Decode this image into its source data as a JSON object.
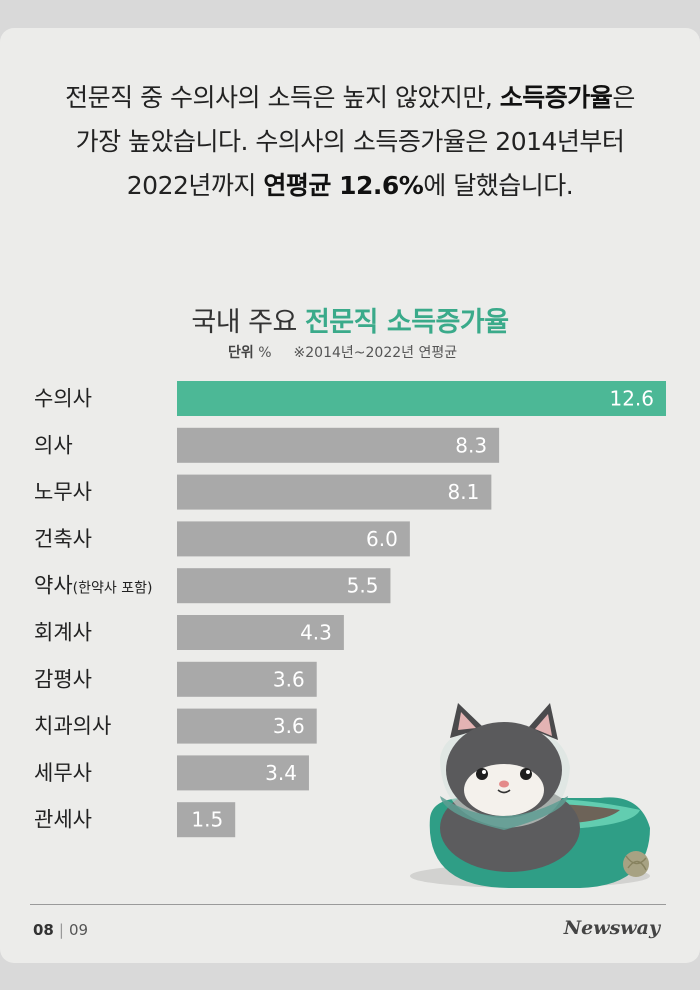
{
  "intro": {
    "line1_a": "전문직 중 수의사의 소득은 높지 않았지만, ",
    "line1_b": "소득증가율",
    "line1_c": "은",
    "line2": "가장 높았습니다. 수의사의 소득증가율은 2014년부터",
    "line3_a": "2022년까지 ",
    "line3_b": "연평균 12.6%",
    "line3_c": "에 달했습니다."
  },
  "chart_title": {
    "normal": "국내 주요 ",
    "highlight": "전문직 소득증가율"
  },
  "unit": {
    "label": "단위",
    "symbol": "%",
    "note": "※2014년~2022년 연평균"
  },
  "chart_data": {
    "type": "bar",
    "orientation": "horizontal",
    "categories": [
      "수의사",
      "의사",
      "노무사",
      "건축사",
      "약사",
      "회계사",
      "감평사",
      "치과의사",
      "세무사",
      "관세사"
    ],
    "category_subs": [
      "",
      "",
      "",
      "",
      "(한약사 포함)",
      "",
      "",
      "",
      "",
      ""
    ],
    "values": [
      12.6,
      8.3,
      8.1,
      6.0,
      5.5,
      4.3,
      3.6,
      3.6,
      3.4,
      1.5
    ],
    "value_labels": [
      "12.6",
      "8.3",
      "8.1",
      "6.0",
      "5.5",
      "4.3",
      "3.6",
      "3.6",
      "3.4",
      "1.5"
    ],
    "xlim": [
      0,
      12.6
    ],
    "colors": {
      "highlight": "#4cb896",
      "default": "#a9a9a9"
    }
  },
  "footer": {
    "page_current": "08",
    "page_total": "09",
    "brand": "Newsway"
  }
}
